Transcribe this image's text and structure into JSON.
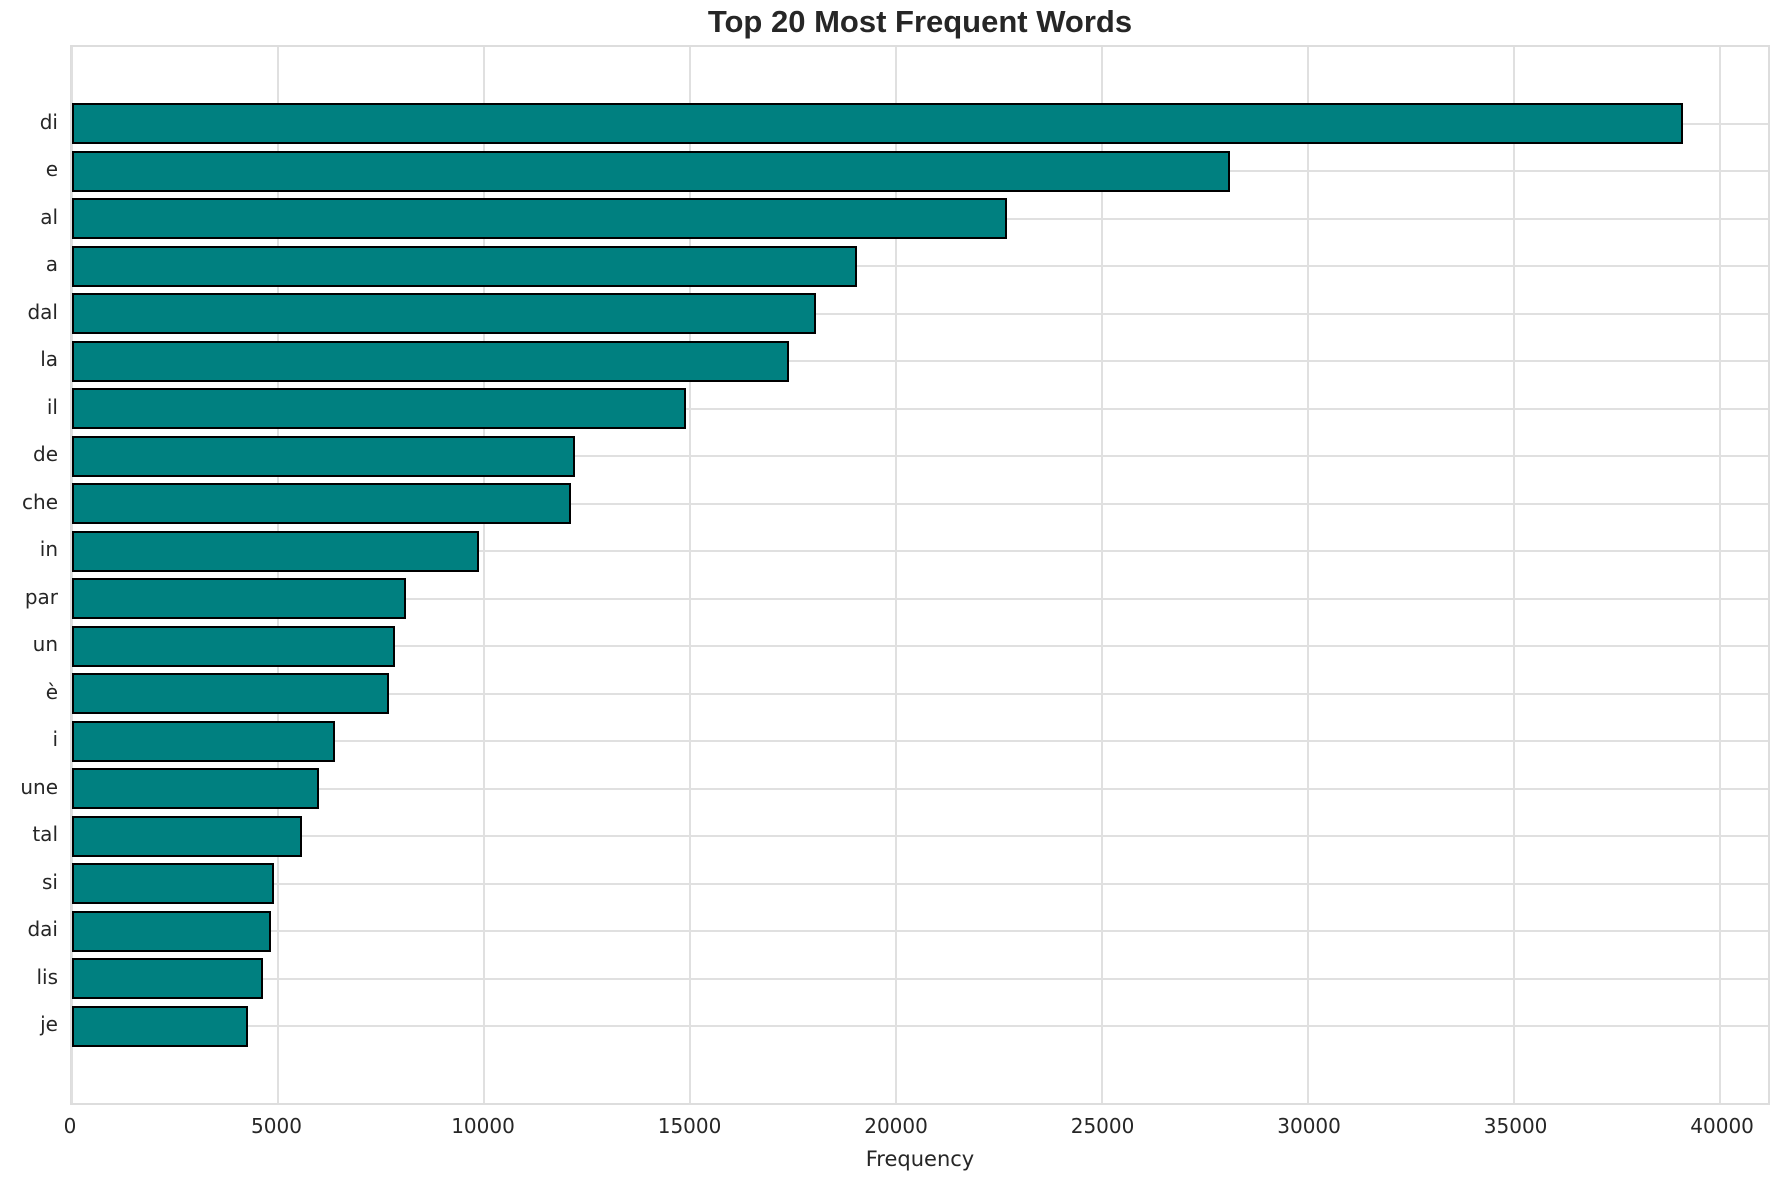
{
  "figure": {
    "background": "#ffffff"
  },
  "chart_data": {
    "type": "bar",
    "orientation": "horizontal",
    "title": "Top 20 Most Frequent Words",
    "xlabel": "Frequency",
    "ylabel": "",
    "categories": [
      "di",
      "e",
      "al",
      "a",
      "dal",
      "la",
      "il",
      "de",
      "che",
      "in",
      "par",
      "un",
      "è",
      "i",
      "une",
      "tal",
      "si",
      "dai",
      "lis",
      "je"
    ],
    "values": [
      39100,
      28100,
      22700,
      19050,
      18050,
      17400,
      14900,
      12200,
      12100,
      9880,
      8110,
      7850,
      7700,
      6390,
      5990,
      5580,
      4900,
      4840,
      4640,
      4270
    ],
    "xlim": [
      0,
      41160
    ],
    "xticks": [
      0,
      5000,
      10000,
      15000,
      20000,
      25000,
      30000,
      35000,
      40000
    ],
    "grid": true,
    "grid_style": "both-axes-light",
    "legend_position": "none",
    "bar_color": "#008080",
    "bar_edge_color": "#000000",
    "grid_color": "#e0e0e0",
    "text_color": "#262626"
  }
}
